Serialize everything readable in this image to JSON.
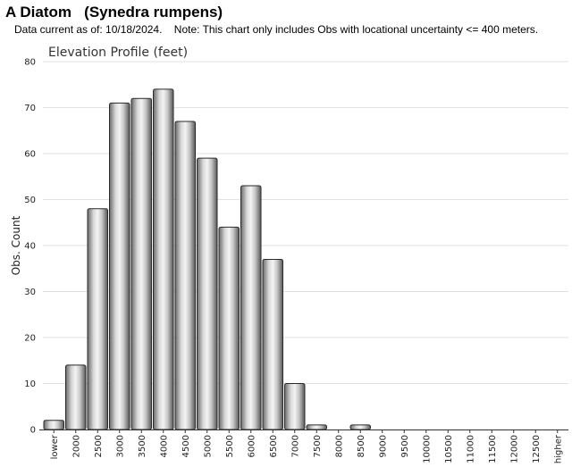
{
  "page": {
    "title": "A Diatom   (Synedra rumpens)",
    "subtitle": "Data current as of: 10/18/2024.    Note: This chart only includes Obs with locational uncertainty <= 400 meters."
  },
  "chart_data": {
    "type": "bar",
    "title": "Elevation Profile (feet)",
    "xlabel": "",
    "ylabel": "Obs. Count",
    "ylim": [
      0,
      80
    ],
    "yticks": [
      0,
      10,
      20,
      30,
      40,
      50,
      60,
      70,
      80
    ],
    "grid": true,
    "categories": [
      "lower",
      "2000",
      "2500",
      "3000",
      "3500",
      "4000",
      "4500",
      "5000",
      "5500",
      "6000",
      "6500",
      "7000",
      "7500",
      "8000",
      "8500",
      "9000",
      "9500",
      "10000",
      "10500",
      "11000",
      "11500",
      "12000",
      "12500",
      "higher"
    ],
    "values": [
      2,
      14,
      48,
      71,
      72,
      74,
      67,
      59,
      44,
      53,
      37,
      10,
      1,
      0,
      1,
      0,
      0,
      0,
      0,
      0,
      0,
      0,
      0,
      0
    ]
  }
}
